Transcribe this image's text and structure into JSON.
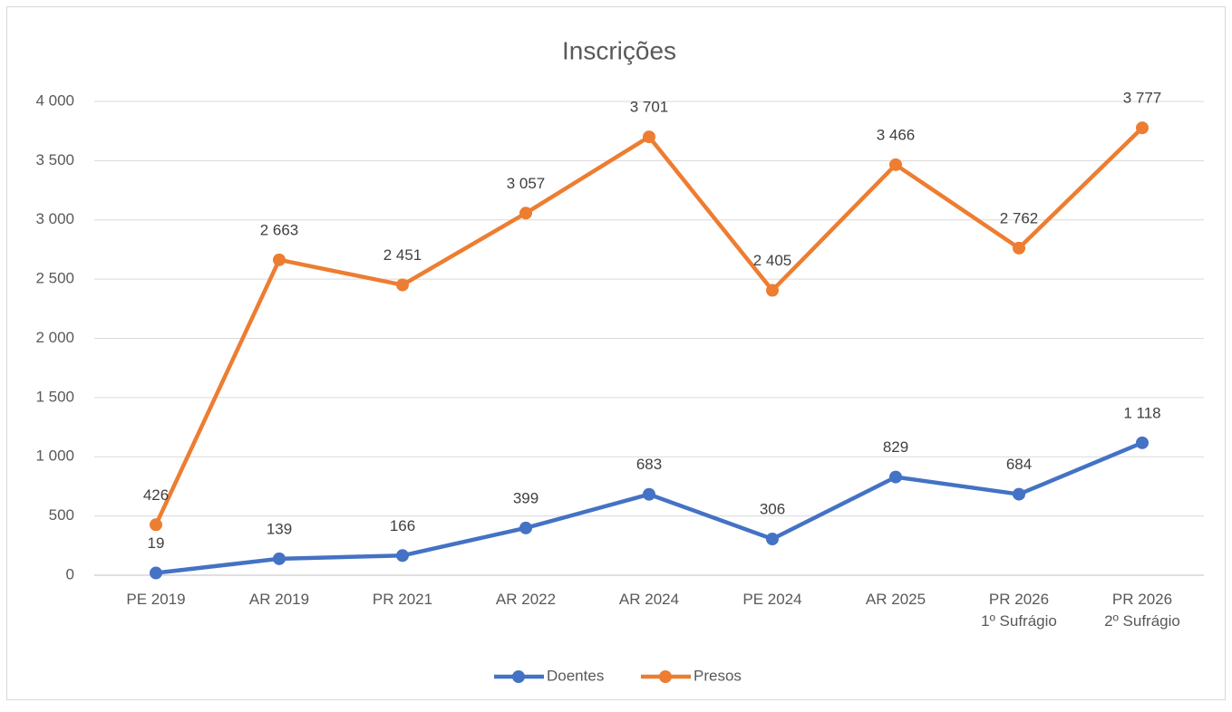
{
  "chart_data": {
    "type": "line",
    "title": "Inscrições",
    "categories": [
      "PE 2019",
      "AR 2019",
      "PR 2021",
      "AR 2022",
      "AR 2024",
      "PE 2024",
      "AR 2025",
      "PR 2026\n1º Sufrágio",
      "PR 2026\n2º Sufrágio"
    ],
    "series": [
      {
        "name": "Doentes",
        "color": "#4472c4",
        "values": [
          19,
          139,
          166,
          399,
          683,
          306,
          829,
          684,
          1118
        ],
        "value_labels": [
          "19",
          "139",
          "166",
          "399",
          "683",
          "306",
          "829",
          "684",
          "1 118"
        ]
      },
      {
        "name": "Presos",
        "color": "#ed7d31",
        "values": [
          426,
          2663,
          2451,
          3057,
          3701,
          2405,
          3466,
          2762,
          3777
        ],
        "value_labels": [
          "426",
          "2 663",
          "2 451",
          "3 057",
          "3 701",
          "2 405",
          "3 466",
          "2 762",
          "3 777"
        ]
      }
    ],
    "ylim": [
      0,
      4000
    ],
    "yticks": [
      0,
      500,
      {
        "value": 1000,
        "label": "1 000"
      },
      {
        "value": 1500,
        "label": "1 500"
      },
      {
        "value": 2000,
        "label": "2 000"
      },
      {
        "value": 2500,
        "label": "2 500"
      },
      {
        "value": 3000,
        "label": "3 000"
      },
      {
        "value": 3500,
        "label": "3 500"
      },
      {
        "value": 4000,
        "label": "4 000"
      }
    ],
    "grid": true,
    "legend": "bottom"
  }
}
